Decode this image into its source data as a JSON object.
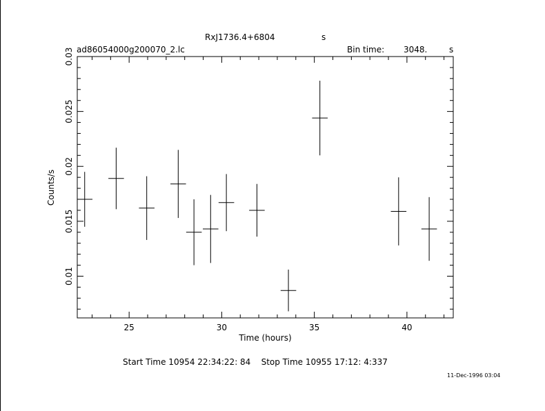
{
  "header": {
    "object": "RxJ1736.4+6804",
    "object_unit": "s",
    "filename": "ad86054000g200070_2.lc",
    "bin_label": "Bin time:",
    "bin_value": "3048.",
    "bin_unit": "s"
  },
  "footer": {
    "times": "Start Time 10954 22:34:22: 84    Stop Time 10955 17:12: 4:337",
    "stamp": "11-Dec-1996 03:04"
  },
  "chart_data": {
    "type": "scatter",
    "xlabel": "Time (hours)",
    "ylabel": "Counts/s",
    "xlim": [
      22.2,
      42.5
    ],
    "ylim": [
      0.0062,
      0.03
    ],
    "xticks": [
      25,
      30,
      35,
      40
    ],
    "xtick_labels": [
      "25",
      "30",
      "35",
      "40"
    ],
    "yticks": [
      0.01,
      0.015,
      0.02,
      0.025,
      0.03
    ],
    "ytick_labels": [
      "0.01",
      "0.015",
      "0.02",
      "0.025",
      "0.03"
    ],
    "series": [
      {
        "points": [
          {
            "x": 22.6,
            "xerr": 0.42,
            "y": 0.017,
            "yerr": 0.0025
          },
          {
            "x": 24.3,
            "xerr": 0.42,
            "y": 0.0189,
            "yerr": 0.0028
          },
          {
            "x": 25.95,
            "xerr": 0.42,
            "y": 0.0162,
            "yerr": 0.0029
          },
          {
            "x": 27.65,
            "xerr": 0.42,
            "y": 0.0184,
            "yerr": 0.0031
          },
          {
            "x": 28.5,
            "xerr": 0.42,
            "y": 0.014,
            "yerr": 0.003
          },
          {
            "x": 29.4,
            "xerr": 0.42,
            "y": 0.0143,
            "yerr": 0.0031
          },
          {
            "x": 30.25,
            "xerr": 0.42,
            "y": 0.0167,
            "yerr": 0.0026
          },
          {
            "x": 31.9,
            "xerr": 0.42,
            "y": 0.016,
            "yerr": 0.0024
          },
          {
            "x": 33.6,
            "xerr": 0.42,
            "y": 0.0087,
            "yerr": 0.0019
          },
          {
            "x": 35.3,
            "xerr": 0.42,
            "y": 0.0244,
            "yerr": 0.0034
          },
          {
            "x": 39.55,
            "xerr": 0.42,
            "y": 0.0159,
            "yerr": 0.0031
          },
          {
            "x": 41.2,
            "xerr": 0.42,
            "y": 0.0143,
            "yerr": 0.0029
          }
        ]
      }
    ]
  }
}
